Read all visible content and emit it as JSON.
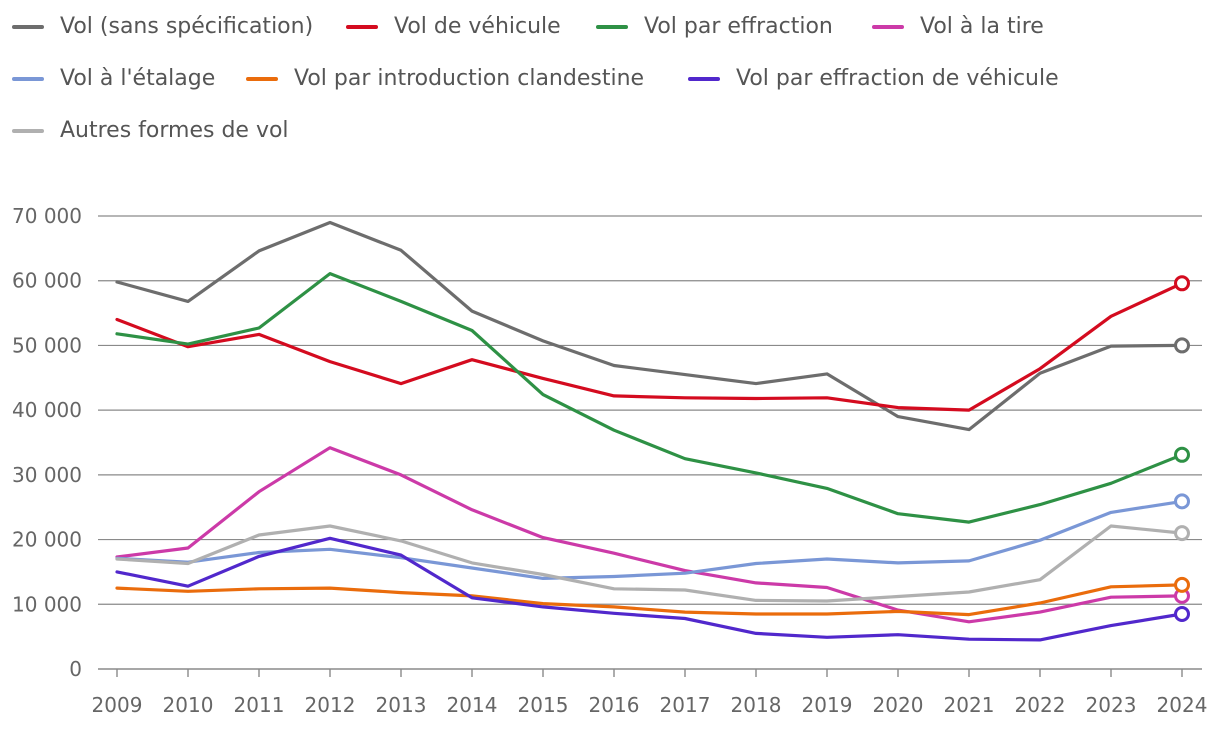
{
  "chart_data": {
    "type": "line",
    "title": "",
    "xlabel": "",
    "ylabel": "",
    "ylim": [
      0,
      70000
    ],
    "yticks": [
      0,
      10000,
      20000,
      30000,
      40000,
      50000,
      60000,
      70000
    ],
    "ytick_labels": [
      "0",
      "10 000",
      "20 000",
      "30 000",
      "40 000",
      "50 000",
      "60 000",
      "70 000"
    ],
    "categories": [
      "2009",
      "2010",
      "2011",
      "2012",
      "2013",
      "2014",
      "2015",
      "2016",
      "2017",
      "2018",
      "2019",
      "2020",
      "2021",
      "2022",
      "2023",
      "2024"
    ],
    "grid": true,
    "legend_position": "top",
    "series": [
      {
        "name": "Vol (sans spécification)",
        "color": "#6d6d6d",
        "values": [
          59800,
          56800,
          64600,
          69000,
          64700,
          55300,
          50700,
          46900,
          45500,
          44100,
          45600,
          39000,
          37000,
          45700,
          49900,
          50000
        ]
      },
      {
        "name": "Vol de véhicule",
        "color": "#d40b1f",
        "values": [
          54000,
          49800,
          51700,
          47500,
          44100,
          47800,
          44900,
          42200,
          41900,
          41800,
          41900,
          40400,
          40000,
          46400,
          54500,
          59600
        ]
      },
      {
        "name": "Vol par effraction",
        "color": "#2e9145",
        "values": [
          51800,
          50200,
          52700,
          61100,
          56800,
          52300,
          42400,
          36900,
          32500,
          30300,
          27900,
          24000,
          22700,
          25400,
          28700,
          33100
        ]
      },
      {
        "name": "Vol à la tire",
        "color": "#cc3aa8",
        "values": [
          17300,
          18700,
          27400,
          34200,
          30000,
          24600,
          20300,
          17900,
          15200,
          13300,
          12600,
          9100,
          7300,
          8800,
          11100,
          11300
        ]
      },
      {
        "name": "Vol à l'étalage",
        "color": "#7a97d6",
        "values": [
          17100,
          16500,
          18000,
          18500,
          17200,
          15600,
          14000,
          14300,
          14800,
          16300,
          17000,
          16400,
          16700,
          19900,
          24200,
          25900
        ]
      },
      {
        "name": "Vol par introduction clandestine",
        "color": "#ea6c0c",
        "values": [
          12500,
          12000,
          12400,
          12500,
          11800,
          11300,
          10100,
          9600,
          8800,
          8500,
          8500,
          8900,
          8400,
          10200,
          12700,
          13000
        ]
      },
      {
        "name": "Vol par effraction de véhicule",
        "color": "#5128cc",
        "values": [
          15000,
          12800,
          17400,
          20200,
          17600,
          11000,
          9600,
          8600,
          7800,
          5500,
          4900,
          5300,
          4600,
          4500,
          6700,
          8500
        ]
      },
      {
        "name": "Autres formes de vol",
        "color": "#b0b0b0",
        "values": [
          17000,
          16300,
          20700,
          22100,
          19800,
          16400,
          14600,
          12400,
          12200,
          10600,
          10500,
          11200,
          11900,
          13800,
          22100,
          21000
        ]
      }
    ]
  }
}
